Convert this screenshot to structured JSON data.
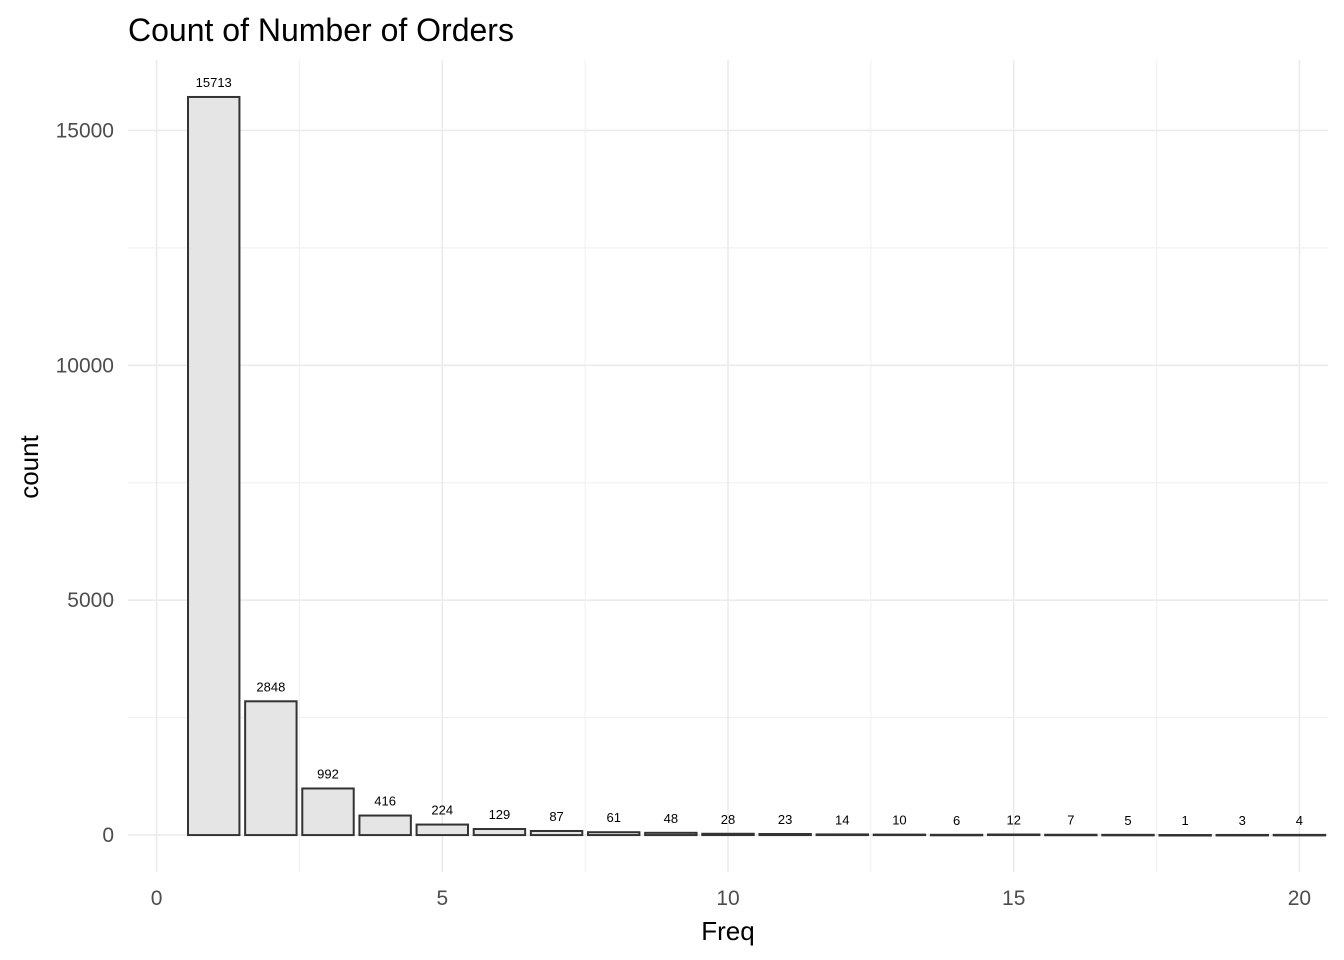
{
  "chart_data": {
    "type": "bar",
    "title": "Count of Number of Orders",
    "xlabel": "Freq",
    "ylabel": "count",
    "x": [
      1,
      2,
      3,
      4,
      5,
      6,
      7,
      8,
      9,
      10,
      11,
      12,
      13,
      14,
      15,
      16,
      17,
      18,
      19,
      20
    ],
    "values": [
      15713,
      2848,
      992,
      416,
      224,
      129,
      87,
      61,
      48,
      28,
      23,
      14,
      10,
      6,
      12,
      7,
      5,
      1,
      3,
      4
    ],
    "data_labels": [
      "15713",
      "2848",
      "992",
      "416",
      "224",
      "129",
      "87",
      "61",
      "48",
      "28",
      "23",
      "14",
      "10",
      "6",
      "12",
      "7",
      "5",
      "1",
      "3",
      "4"
    ],
    "x_ticks": [
      0,
      5,
      10,
      15,
      20
    ],
    "x_tick_labels": [
      "0",
      "5",
      "10",
      "15",
      "20"
    ],
    "y_ticks": [
      0,
      5000,
      10000,
      15000
    ],
    "y_tick_labels": [
      "0",
      "5000",
      "10000",
      "15000"
    ],
    "xlim": [
      -0.5,
      20.5
    ],
    "ylim": [
      -786,
      16500
    ],
    "grid": true,
    "legend": "none",
    "colors": {
      "bar_fill": "#e5e5e5",
      "bar_outline": "#333333",
      "grid": "#ebebeb"
    }
  }
}
